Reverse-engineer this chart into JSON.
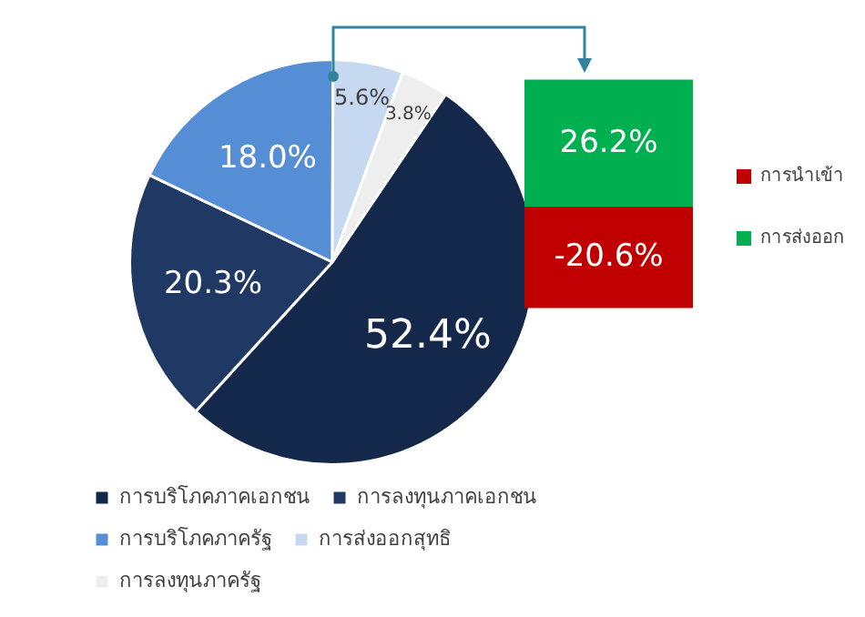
{
  "chart_data": [
    {
      "type": "pie",
      "categories": [
        "การบริโภคภาคเอกชน",
        "การลงทุนภาคเอกชน",
        "การบริโภคภาครัฐ",
        "การส่งออกสุทธิ",
        "การลงทุนภาครัฐ"
      ],
      "values": [
        52.4,
        20.3,
        18.0,
        5.6,
        3.8
      ],
      "value_labels": [
        "52.4%",
        "20.3%",
        "18.0%",
        "5.6%",
        "3.8%"
      ],
      "colors": [
        "#14284b",
        "#1f3864",
        "#558ed5",
        "#c6d9f1",
        "#eeeeee"
      ],
      "data_labels": true,
      "legend": "bottom"
    },
    {
      "type": "bar",
      "categories": [
        null
      ],
      "stacked": true,
      "data_labels": true,
      "legend": "right",
      "tick_labels": false,
      "series": [
        {
          "name": "การส่งออก",
          "color": "#00b050",
          "values": [
            26.2
          ],
          "value_labels": [
            "26.2%"
          ]
        },
        {
          "name": "การนำเข้า",
          "color": "#c00000",
          "values": [
            -20.6
          ],
          "value_labels": [
            "-20.6%"
          ]
        }
      ]
    }
  ]
}
